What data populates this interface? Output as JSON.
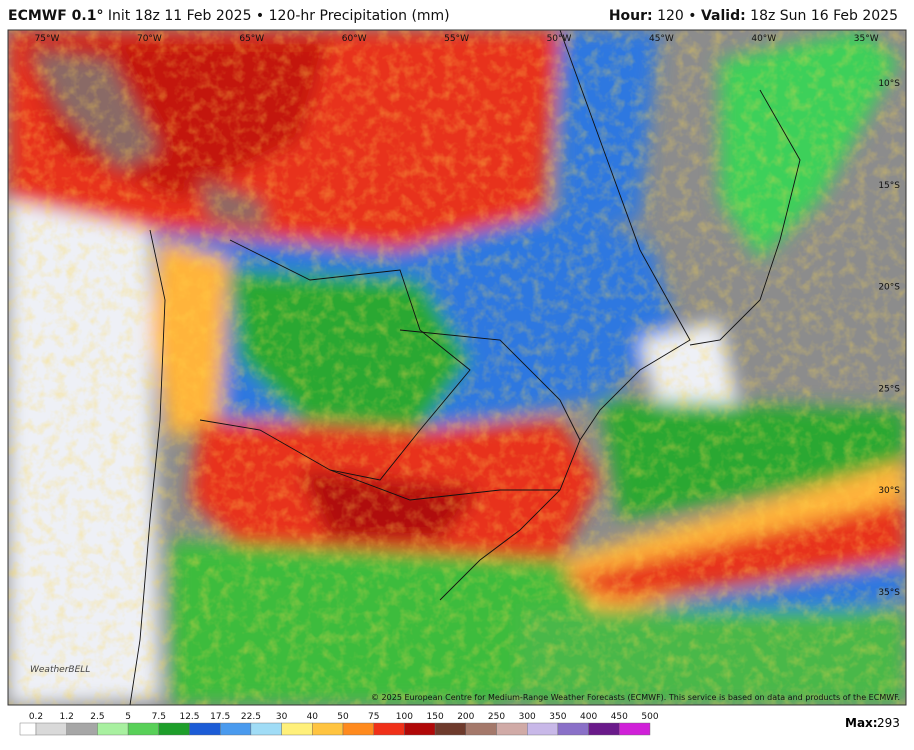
{
  "header": {
    "model": "ECMWF 0.1°",
    "product": "Init 18z 11 Feb 2025 • 120-hr Precipitation (mm)",
    "hour_label": "Hour:",
    "hour_value": "120 •",
    "valid_label": "Valid:",
    "valid_value": "18z Sun 16 Feb 2025"
  },
  "map": {
    "lon_labels": [
      "75°W",
      "70°W",
      "65°W",
      "60°W",
      "55°W",
      "50°W",
      "45°W",
      "40°W",
      "35°W"
    ],
    "lat_labels": [
      "10°S",
      "15°S",
      "20°S",
      "25°S",
      "30°S",
      "35°S"
    ],
    "logo": "WeatherBELL",
    "copyright": "© 2025 European Centre for Medium-Range Weather Forecasts (ECMWF). This service is based on data and products of the ECMWF."
  },
  "legend": {
    "levels": [
      0.2,
      1.2,
      2.5,
      5,
      7.5,
      12.5,
      17.5,
      22.5,
      30,
      40,
      50,
      75,
      100,
      150,
      200,
      250,
      300,
      350,
      400,
      450,
      500
    ],
    "colors": [
      "#ffffff",
      "#d9d9d9",
      "#a6a6a6",
      "#a8f0a0",
      "#58d058",
      "#1e9e2a",
      "#1c5cd6",
      "#4a9aee",
      "#a0dcf6",
      "#fff07a",
      "#ffc440",
      "#ff8a1e",
      "#f03018",
      "#b00808",
      "#6e3a2c",
      "#a4786a",
      "#d0aaa6",
      "#c8b8e8",
      "#8a70c8",
      "#6a1a8a",
      "#d020d8"
    ],
    "max_label": "Max:",
    "max_value": 293
  }
}
